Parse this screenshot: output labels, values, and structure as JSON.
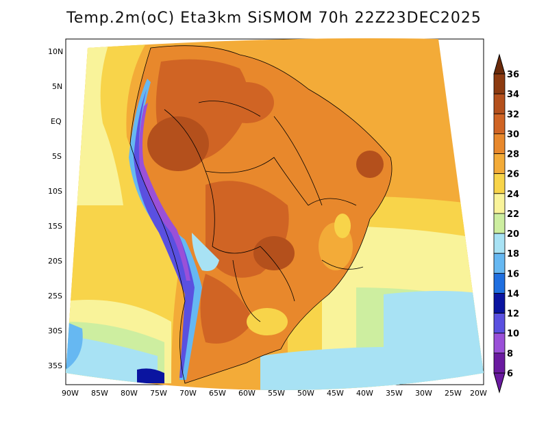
{
  "title": "Temp.2m(oC) Eta3km SiSMOM 70h 22Z23DEC2025",
  "lat_ticks": [
    "10N",
    "5N",
    "EQ",
    "5S",
    "10S",
    "15S",
    "20S",
    "25S",
    "30S",
    "35S"
  ],
  "lon_ticks": [
    "90W",
    "85W",
    "80W",
    "75W",
    "70W",
    "65W",
    "60W",
    "55W",
    "50W",
    "45W",
    "40W",
    "35W",
    "30W",
    "25W",
    "20W"
  ],
  "colorbar": {
    "labels": [
      "36",
      "34",
      "32",
      "30",
      "28",
      "26",
      "24",
      "22",
      "20",
      "18",
      "16",
      "14",
      "12",
      "10",
      "8",
      "6"
    ],
    "colors": [
      "#6b2a0a",
      "#8c3a10",
      "#b4501c",
      "#d06424",
      "#e8882c",
      "#f3ab38",
      "#f8d44a",
      "#f9f39a",
      "#cdeea0",
      "#a8e2f4",
      "#66b8f2",
      "#1f6fe0",
      "#0a14a0",
      "#5a50e0",
      "#9a50d8",
      "#6a1aa0"
    ]
  }
}
